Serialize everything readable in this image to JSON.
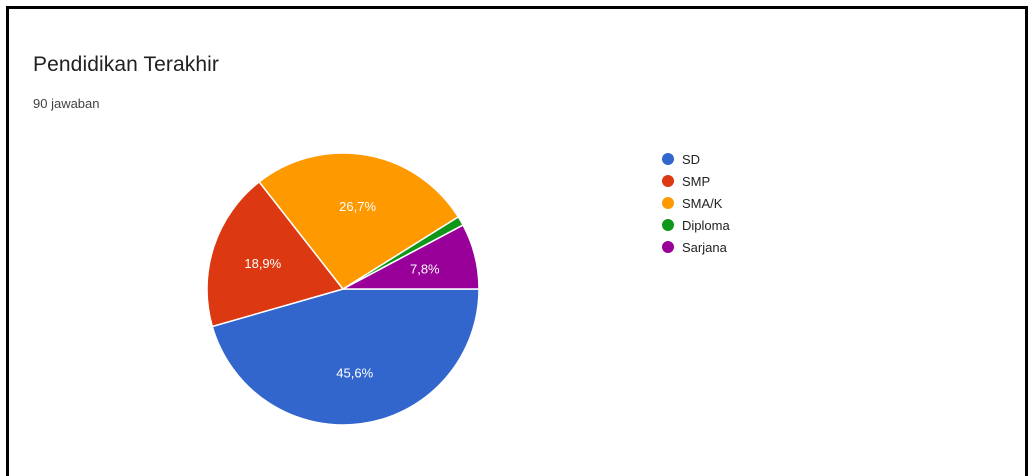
{
  "chart_data": {
    "type": "pie",
    "title": "Pendidikan Terakhir",
    "subtitle": "90 jawaban",
    "legend_position": "right",
    "slices": [
      {
        "label": "SD",
        "value": 45.6,
        "display": "45,6%",
        "color": "#3366cc"
      },
      {
        "label": "SMP",
        "value": 18.9,
        "display": "18,9%",
        "color": "#dc3912"
      },
      {
        "label": "SMA/K",
        "value": 26.7,
        "display": "26,7%",
        "color": "#ff9900"
      },
      {
        "label": "Diploma",
        "value": 1.1,
        "display": "",
        "color": "#109618"
      },
      {
        "label": "Sarjana",
        "value": 7.8,
        "display": "7,8%",
        "color": "#990099"
      }
    ]
  }
}
